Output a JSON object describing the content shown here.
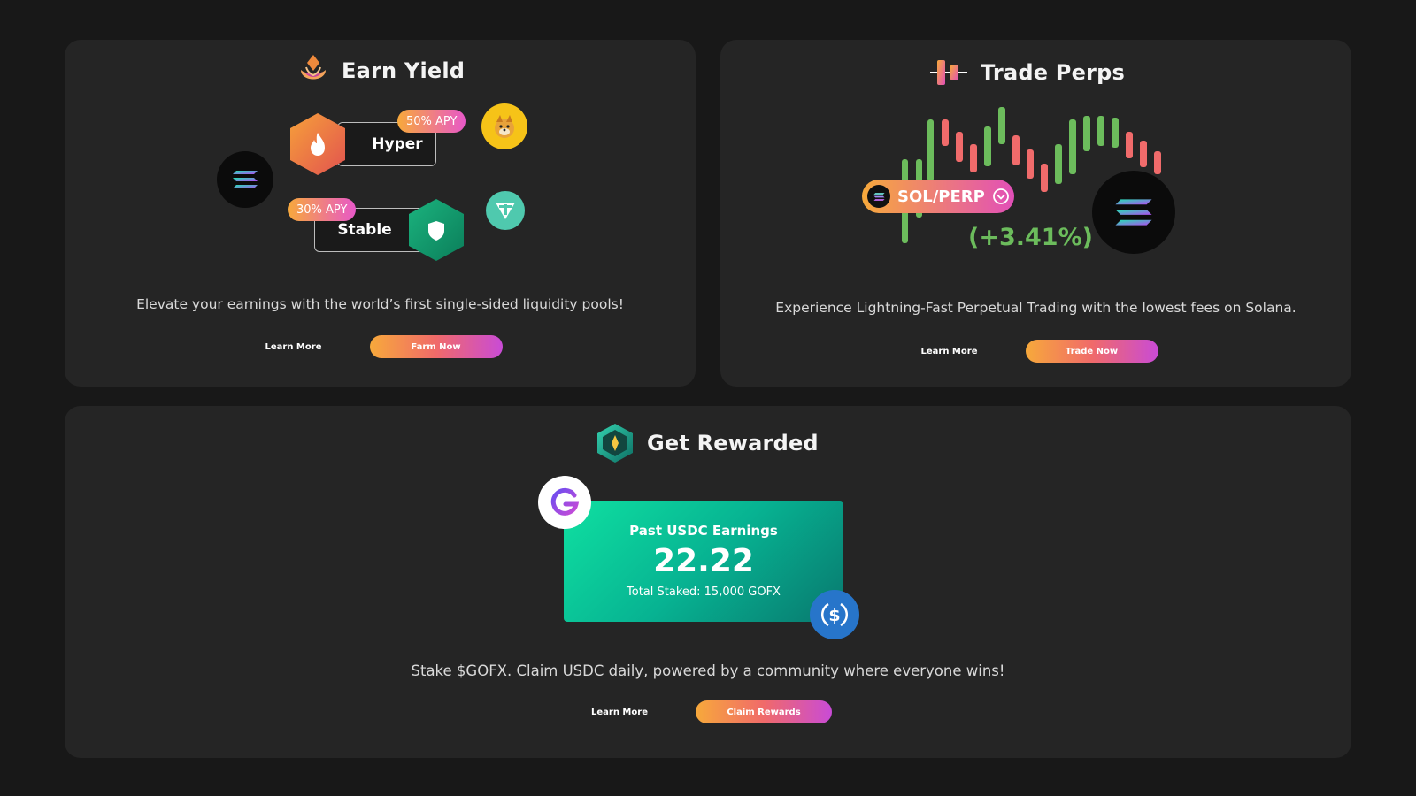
{
  "earn_yield": {
    "title": "Earn Yield",
    "hyper_label": "Hyper",
    "hyper_apy": "50% APY",
    "stable_label": "Stable",
    "stable_apy": "30% APY",
    "description": "Elevate your earnings with the world’s first single-sided liquidity pools!",
    "learn_more": "Learn More",
    "cta": "Farm Now"
  },
  "trade_perps": {
    "title": "Trade Perps",
    "pair": "SOL/PERP",
    "change": "(+3.41%)",
    "description": "Experience Lightning-Fast Perpetual Trading with the lowest fees on Solana.",
    "learn_more": "Learn More",
    "cta": "Trade Now",
    "colors": {
      "up": "#6cbc5c",
      "down": "#f06b6b"
    }
  },
  "get_rewarded": {
    "title": "Get Rewarded",
    "earnings_label": "Past USDC Earnings",
    "earnings_value": "22.22",
    "total_staked": "Total Staked: 15,000 GOFX",
    "description": "Stake $GOFX. Claim USDC daily, powered by a community where everyone wins!",
    "learn_more": "Learn More",
    "cta": "Claim Rewards"
  },
  "icons": [
    "flower-icon",
    "flame-icon",
    "shield-icon",
    "solana-icon",
    "dog-icon",
    "tether-icon",
    "candlestick-icon",
    "chevron-down-icon",
    "gem-icon",
    "gofx-g-icon",
    "usdc-icon"
  ]
}
